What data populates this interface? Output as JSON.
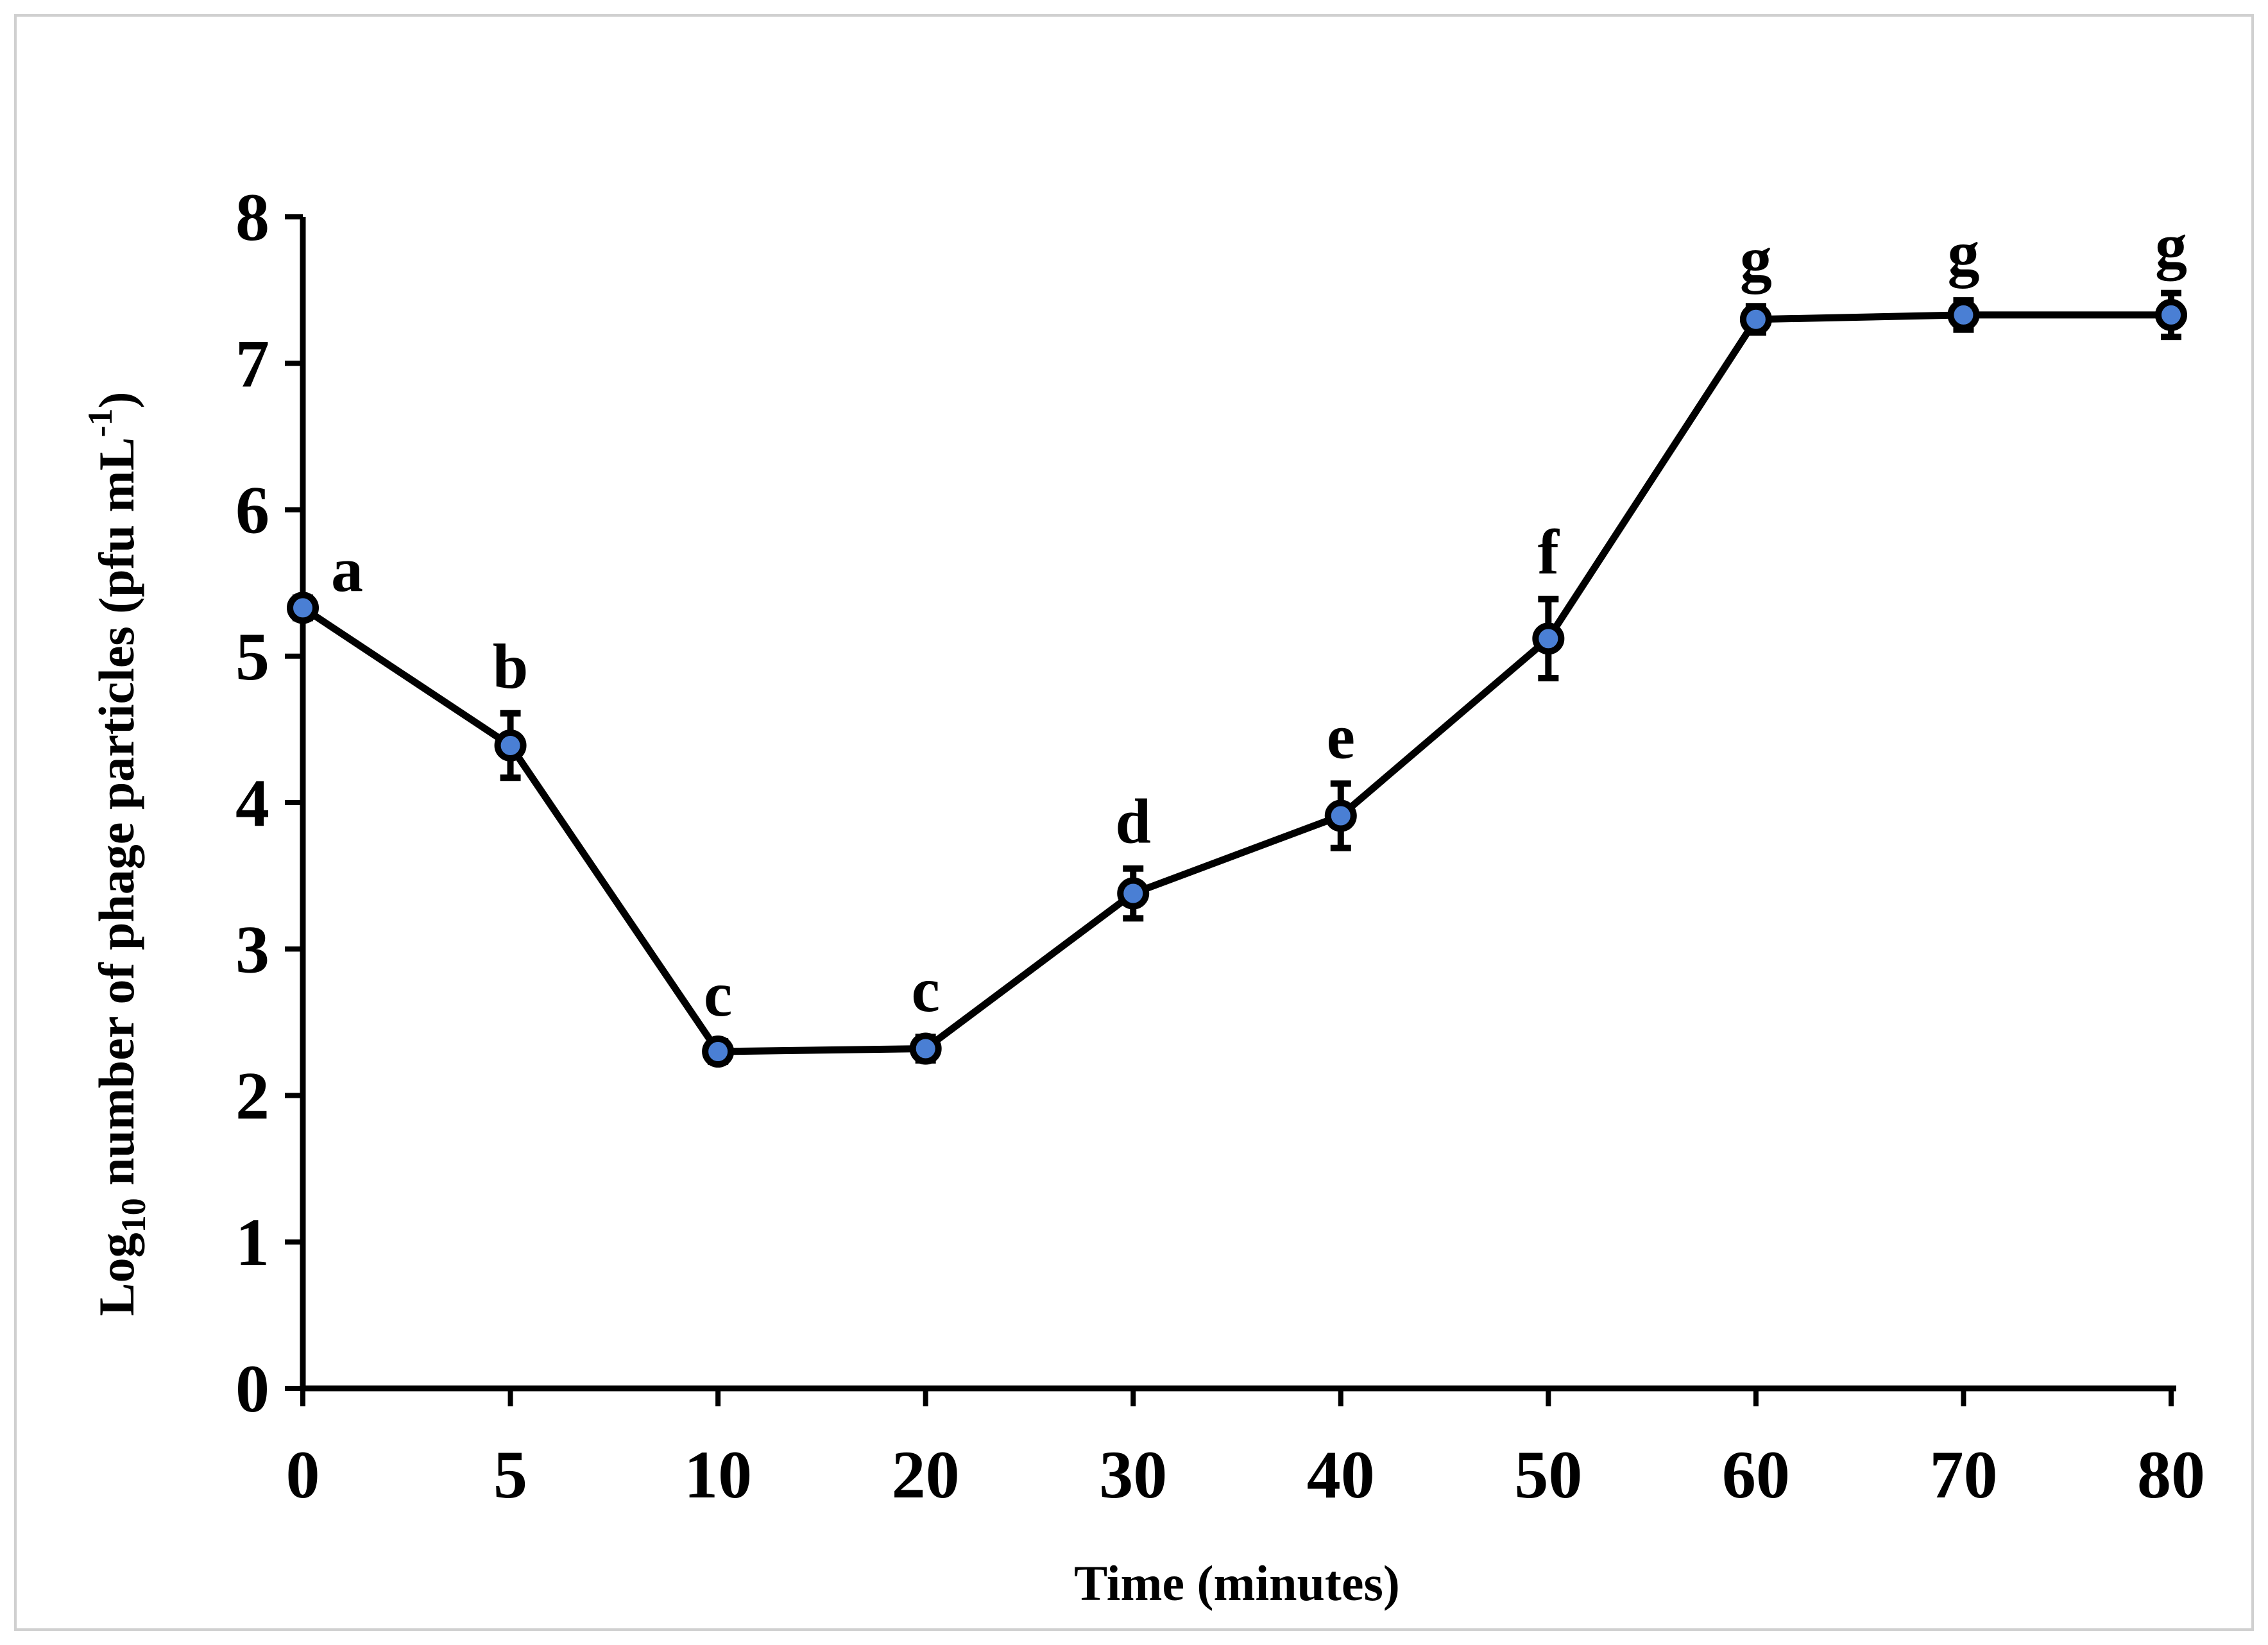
{
  "chart_data": {
    "type": "line",
    "title": "",
    "xlabel": "Time (minutes)",
    "ylabel": {
      "base": "Log",
      "subscript": "10",
      "text": " number of phage particles (pfu mL",
      "superscript": "-1",
      "end": ")"
    },
    "ylim": [
      0,
      8
    ],
    "yticks": [
      0,
      1,
      2,
      3,
      4,
      5,
      6,
      7,
      8
    ],
    "categories": [
      "0",
      "5",
      "10",
      "20",
      "30",
      "40",
      "50",
      "60",
      "70",
      "80"
    ],
    "series": [
      {
        "values": [
          5.33,
          4.39,
          2.3,
          2.32,
          3.38,
          3.91,
          5.12,
          7.3,
          7.33,
          7.33
        ],
        "errors": [
          0.07,
          0.22,
          0.07,
          0.08,
          0.17,
          0.22,
          0.27,
          0.09,
          0.1,
          0.15
        ],
        "letters": [
          "a",
          "b",
          "c",
          "c",
          "d",
          "e",
          "f",
          "g",
          "g",
          "g"
        ]
      }
    ],
    "grid": false,
    "legend": "none",
    "colors": {
      "line": "#000000",
      "marker_fill": "#4a7fd4",
      "marker_edge": "#000000",
      "axis": "#000000"
    }
  }
}
